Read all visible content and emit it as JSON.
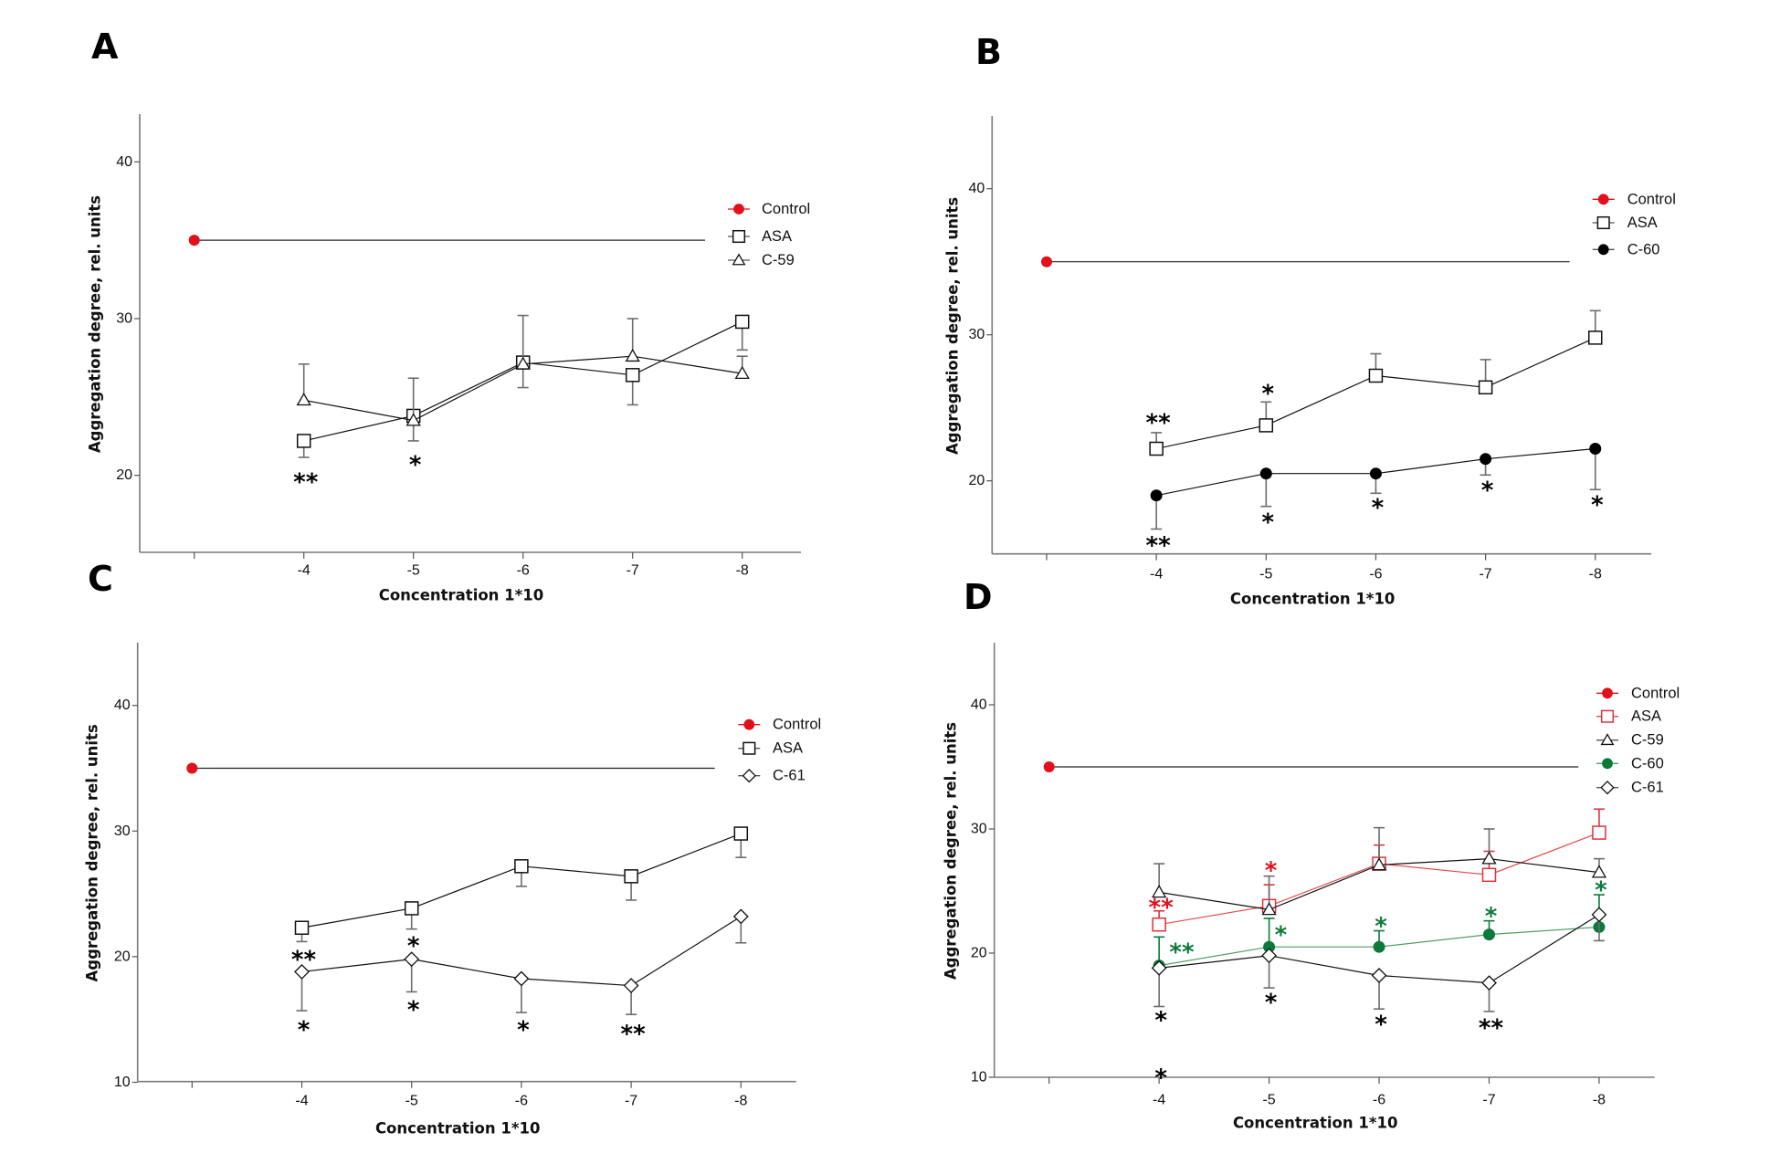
{
  "figure": {
    "panels": [
      "A",
      "B",
      "C",
      "D"
    ]
  },
  "chart_data": [
    {
      "panel": "A",
      "type": "line",
      "title": "",
      "xlabel": "Concentration 1*10",
      "ylabel": "Aggregation degree, rel. units",
      "categories": [
        "",
        "-4",
        "-5",
        "-6",
        "-7",
        "-8"
      ],
      "yticks": [
        20,
        30,
        40
      ],
      "ylim": [
        15,
        43
      ],
      "grid": false,
      "legend_position": "top-right",
      "control": {
        "name": "Control",
        "value": 35,
        "color": "#e3101b"
      },
      "series": [
        {
          "name": "ASA",
          "marker": "square",
          "color": "#111111",
          "line_color": "#111111",
          "x": [
            "-4",
            "-5",
            "-6",
            "-7",
            "-8"
          ],
          "values": [
            22.2,
            23.8,
            27.2,
            26.4,
            29.8
          ],
          "error": [
            1.05,
            1.6,
            1.6,
            1.9,
            1.8
          ],
          "error_direction": "down"
        },
        {
          "name": "C-59",
          "marker": "triangle",
          "color": "#111111",
          "line_color": "#111111",
          "x": [
            "-4",
            "-5",
            "-6",
            "-7",
            "-8"
          ],
          "values": [
            24.8,
            23.5,
            27.1,
            27.6,
            26.5
          ],
          "error": [
            2.3,
            2.7,
            3.1,
            2.4,
            1.1
          ],
          "error_direction": "up"
        }
      ],
      "annotations": [
        {
          "text": "**",
          "x": "-4",
          "y": 19.6,
          "color": "#000000"
        },
        {
          "text": "*",
          "x": "-5",
          "y": 20.7,
          "color": "#000000"
        }
      ]
    },
    {
      "panel": "B",
      "type": "line",
      "title": "",
      "xlabel": "Concentration 1*10",
      "ylabel": "Aggregation degree, rel. units",
      "categories": [
        "",
        "-4",
        "-5",
        "-6",
        "-7",
        "-8"
      ],
      "yticks": [
        20,
        30,
        40
      ],
      "ylim": [
        15,
        45
      ],
      "grid": false,
      "legend_position": "top-right",
      "control": {
        "name": "Control",
        "value": 35,
        "color": "#e3101b"
      },
      "series": [
        {
          "name": "ASA",
          "marker": "square",
          "color": "#111111",
          "line_color": "#111111",
          "x": [
            "-4",
            "-5",
            "-6",
            "-7",
            "-8"
          ],
          "values": [
            22.2,
            23.8,
            27.2,
            26.4,
            29.8
          ],
          "error": [
            1.1,
            1.6,
            1.5,
            1.9,
            1.85
          ],
          "error_direction": "up"
        },
        {
          "name": "C-60",
          "marker": "circle",
          "color": "#000000",
          "line_color": "#111111",
          "x": [
            "-4",
            "-5",
            "-6",
            "-7",
            "-8"
          ],
          "values": [
            19.0,
            20.5,
            20.5,
            21.5,
            22.2
          ],
          "error": [
            2.3,
            2.25,
            1.35,
            1.1,
            2.8
          ],
          "error_direction": "down"
        }
      ],
      "annotations": [
        {
          "text": "**",
          "x": "-4",
          "y": 24.0,
          "color": "#000000"
        },
        {
          "text": "*",
          "x": "-5",
          "y": 26.0,
          "color": "#000000"
        },
        {
          "text": "**",
          "x": "-4",
          "y": 15.6,
          "color": "#000000"
        },
        {
          "text": "*",
          "x": "-5",
          "y": 17.2,
          "color": "#000000"
        },
        {
          "text": "*",
          "x": "-6",
          "y": 18.2,
          "color": "#000000"
        },
        {
          "text": "*",
          "x": "-7",
          "y": 19.4,
          "color": "#000000"
        },
        {
          "text": "*",
          "x": "-8",
          "y": 18.4,
          "color": "#000000"
        }
      ]
    },
    {
      "panel": "C",
      "type": "line",
      "title": "",
      "xlabel": "Concentration 1*10",
      "ylabel": "Aggregation degree, rel. units",
      "categories": [
        "",
        "-4",
        "-5",
        "-6",
        "-7",
        "-8"
      ],
      "yticks": [
        10,
        20,
        30,
        40
      ],
      "ylim": [
        10,
        45
      ],
      "grid": false,
      "legend_position": "top-right",
      "control": {
        "name": "Control",
        "value": 35,
        "color": "#e3101b"
      },
      "series": [
        {
          "name": "ASA",
          "marker": "square",
          "color": "#111111",
          "line_color": "#111111",
          "x": [
            "-4",
            "-5",
            "-6",
            "-7",
            "-8"
          ],
          "values": [
            22.3,
            23.85,
            27.2,
            26.4,
            29.8
          ],
          "error": [
            1.1,
            1.65,
            1.6,
            1.9,
            1.9
          ],
          "error_direction": "down"
        },
        {
          "name": "C-61",
          "marker": "diamond",
          "color": "#111111",
          "line_color": "#111111",
          "x": [
            "-4",
            "-5",
            "-6",
            "-7",
            "-8"
          ],
          "values": [
            18.8,
            19.8,
            18.25,
            17.7,
            23.2
          ],
          "error": [
            3.1,
            2.6,
            2.7,
            2.3,
            2.1
          ],
          "error_direction": "down"
        }
      ],
      "annotations": [
        {
          "text": "**",
          "x": "-4",
          "y": 19.8,
          "color": "#000000"
        },
        {
          "text": "*",
          "x": "-5",
          "y": 20.9,
          "color": "#000000"
        },
        {
          "text": "*",
          "x": "-4",
          "y": 14.2,
          "color": "#000000"
        },
        {
          "text": "*",
          "x": "-5",
          "y": 15.8,
          "color": "#000000"
        },
        {
          "text": "*",
          "x": "-6",
          "y": 14.2,
          "color": "#000000"
        },
        {
          "text": "**",
          "x": "-7",
          "y": 13.9,
          "color": "#000000"
        }
      ]
    },
    {
      "panel": "D",
      "type": "line",
      "title": "",
      "xlabel": "Concentration 1*10",
      "ylabel": "Aggregation degree, rel. units",
      "categories": [
        "",
        "-4",
        "-5",
        "-6",
        "-7",
        "-8"
      ],
      "yticks": [
        10,
        20,
        30,
        40
      ],
      "ylim": [
        10,
        45
      ],
      "grid": false,
      "legend_position": "top-right",
      "control": {
        "name": "Control",
        "value": 35,
        "color": "#e3101b"
      },
      "series": [
        {
          "name": "ASA",
          "marker": "square",
          "color": "#e0323a",
          "line_color": "#e8474d",
          "x": [
            "-4",
            "-5",
            "-6",
            "-7",
            "-8"
          ],
          "values": [
            22.3,
            23.8,
            27.2,
            26.3,
            29.7
          ],
          "error": [
            1.1,
            1.7,
            1.5,
            1.9,
            1.9
          ],
          "error_direction": "up"
        },
        {
          "name": "C-59",
          "marker": "triangle",
          "color": "#111111",
          "line_color": "#111111",
          "x": [
            "-4",
            "-5",
            "-6",
            "-7",
            "-8"
          ],
          "values": [
            24.9,
            23.5,
            27.1,
            27.6,
            26.5
          ],
          "error": [
            2.3,
            2.7,
            3.0,
            2.4,
            1.1
          ],
          "error_direction": "up"
        },
        {
          "name": "C-60",
          "marker": "circle",
          "color": "#0b7a3b",
          "line_color": "#4e9e66",
          "x": [
            "-4",
            "-5",
            "-6",
            "-7",
            "-8"
          ],
          "values": [
            19.0,
            20.5,
            20.5,
            21.5,
            22.1
          ],
          "error": [
            2.3,
            2.3,
            1.3,
            1.1,
            2.6
          ],
          "error_direction": "up"
        },
        {
          "name": "C-61",
          "marker": "diamond",
          "color": "#111111",
          "line_color": "#111111",
          "x": [
            "-4",
            "-5",
            "-6",
            "-7",
            "-8"
          ],
          "values": [
            18.8,
            19.8,
            18.2,
            17.6,
            23.1
          ],
          "error": [
            3.1,
            2.6,
            2.7,
            2.3,
            2.1
          ],
          "error_direction": "down"
        }
      ],
      "annotations": [
        {
          "text": "**",
          "x": "-4",
          "y": 23.7,
          "color": "#e3101b"
        },
        {
          "text": "*",
          "x": "-5",
          "y": 26.7,
          "color": "#e3101b"
        },
        {
          "text": "**",
          "x": "-4",
          "dx": 0.19,
          "y": 20.1,
          "color": "#0b7a3b"
        },
        {
          "text": "*",
          "x": "-5",
          "dx": 0.09,
          "y": 21.5,
          "color": "#0b7a3b"
        },
        {
          "text": "*",
          "x": "-6",
          "y": 22.2,
          "color": "#0b7a3b"
        },
        {
          "text": "*",
          "x": "-7",
          "y": 23.0,
          "color": "#0b7a3b"
        },
        {
          "text": "*",
          "x": "-8",
          "y": 25.1,
          "color": "#0b7a3b"
        },
        {
          "text": "*",
          "x": "-4",
          "y": 14.65,
          "color": "#000000"
        },
        {
          "text": "*",
          "x": "-4",
          "y": 10.0,
          "color": "#000000"
        },
        {
          "text": "*",
          "x": "-5",
          "y": 16.05,
          "color": "#000000"
        },
        {
          "text": "*",
          "x": "-6",
          "y": 14.3,
          "color": "#000000"
        },
        {
          "text": "**",
          "x": "-7",
          "y": 14.0,
          "color": "#000000"
        }
      ]
    }
  ]
}
